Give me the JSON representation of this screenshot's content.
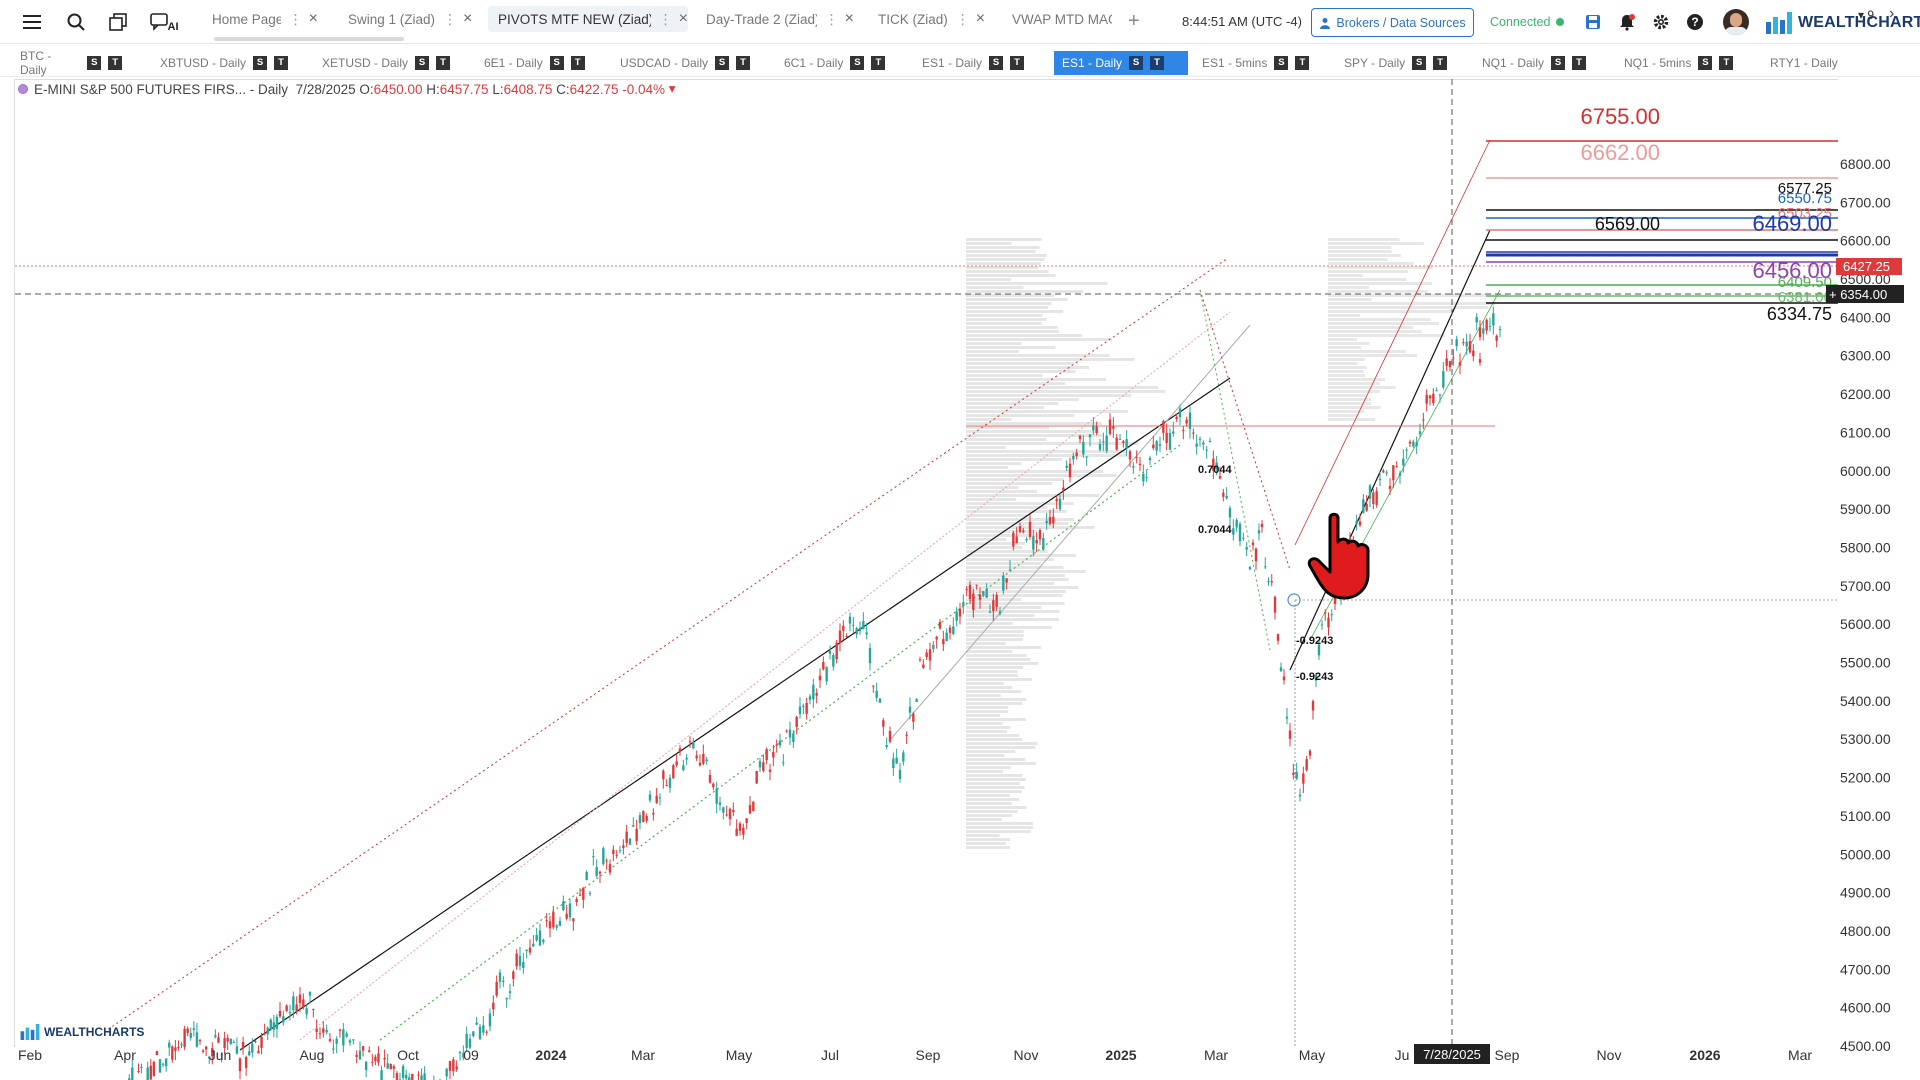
{
  "topbar": {
    "tabs": [
      {
        "label": "Home Page",
        "active": false
      },
      {
        "label": "Swing 1 (Ziad)",
        "active": false
      },
      {
        "label": "PIVOTS MTF NEW (Ziad)",
        "active": true
      },
      {
        "label": "Day-Trade 2 (Ziad)",
        "active": false
      },
      {
        "label": "TICK (Ziad)",
        "active": false
      },
      {
        "label": "VWAP MTD MAG",
        "active": false
      }
    ],
    "ai_label": "AI",
    "add_tab": "+",
    "clock": "8:44:51 AM  (UTC -4)",
    "brokers_label": "Brokers / Data Sources",
    "connection_status": "Connected",
    "logo_text": "WEALTHCHARTS",
    "icons": [
      "menu-icon",
      "search-icon",
      "layers-icon",
      "ai-chat-icon",
      "save-icon",
      "bell-icon",
      "gear-icon",
      "help-icon"
    ]
  },
  "watchlist": {
    "items": [
      {
        "label": "BTC - Daily",
        "active": false
      },
      {
        "label": "XBTUSD - Daily",
        "active": false
      },
      {
        "label": "XETUSD - Daily",
        "active": false
      },
      {
        "label": "6E1 - Daily",
        "active": false
      },
      {
        "label": "USDCAD - Daily",
        "active": false
      },
      {
        "label": "6C1 - Daily",
        "active": false
      },
      {
        "label": "ES1 - Daily",
        "active": false
      },
      {
        "label": "ES1 - Daily",
        "active": true
      },
      {
        "label": "ES1 - 5mins",
        "active": false
      },
      {
        "label": "SPY - Daily",
        "active": false
      },
      {
        "label": "NQ1 - Daily",
        "active": false
      },
      {
        "label": "NQ1 - 5mins",
        "active": false
      },
      {
        "label": "RTY1 - Daily",
        "active": false
      }
    ],
    "badge_s": "S",
    "badge_t": "T",
    "more_count": "9"
  },
  "legend": {
    "symbol": "E-MINI S&P 500 FUTURES FIRS... - Daily",
    "date": "7/28/2025",
    "o_label": "O:",
    "o": "6450.00",
    "h_label": "H:",
    "h": "6457.75",
    "l_label": "L:",
    "l": "6408.75",
    "c_label": "C:",
    "c": "6422.75",
    "change": "-0.04%"
  },
  "chart_data": {
    "type": "candlestick",
    "title": "E-MINI S&P 500 FUTURES FIRS... - Daily",
    "y_ticks": [
      4500,
      4600,
      4700,
      4800,
      4900,
      5000,
      5100,
      5200,
      5300,
      5400,
      5500,
      5600,
      5700,
      5800,
      5900,
      6000,
      6100,
      6200,
      6300,
      6400,
      6500,
      6600,
      6700,
      6800
    ],
    "x_ticks": [
      {
        "label": "Feb",
        "bold": false
      },
      {
        "label": "Apr",
        "bold": false
      },
      {
        "label": "Jun",
        "bold": false
      },
      {
        "label": "Aug",
        "bold": false
      },
      {
        "label": "Oct",
        "bold": false
      },
      {
        "label": "09",
        "bold": false
      },
      {
        "label": "2024",
        "bold": true
      },
      {
        "label": "Mar",
        "bold": false
      },
      {
        "label": "May",
        "bold": false
      },
      {
        "label": "Jul",
        "bold": false
      },
      {
        "label": "Sep",
        "bold": false
      },
      {
        "label": "Nov",
        "bold": false
      },
      {
        "label": "2025",
        "bold": true
      },
      {
        "label": "Mar",
        "bold": false
      },
      {
        "label": "May",
        "bold": false
      },
      {
        "label": "Ju",
        "bold": false
      },
      {
        "label": "Sep",
        "bold": false
      },
      {
        "label": "Nov",
        "bold": false
      },
      {
        "label": "2026",
        "bold": true
      },
      {
        "label": "Mar",
        "bold": false
      }
    ],
    "crosshair_date": "7/28/2025",
    "last_price": "6427.25",
    "crosshair_price": "6354.00",
    "price_series": [
      {
        "x": 120,
        "y": 4380
      },
      {
        "x": 160,
        "y": 4460
      },
      {
        "x": 200,
        "y": 4520
      },
      {
        "x": 240,
        "y": 4470
      },
      {
        "x": 280,
        "y": 4560
      },
      {
        "x": 300,
        "y": 4620
      },
      {
        "x": 330,
        "y": 4540
      },
      {
        "x": 360,
        "y": 4480
      },
      {
        "x": 400,
        "y": 4420
      },
      {
        "x": 440,
        "y": 4370
      },
      {
        "x": 470,
        "y": 4500
      },
      {
        "x": 500,
        "y": 4640
      },
      {
        "x": 520,
        "y": 4720
      },
      {
        "x": 550,
        "y": 4800
      },
      {
        "x": 580,
        "y": 4900
      },
      {
        "x": 610,
        "y": 5000
      },
      {
        "x": 640,
        "y": 5080
      },
      {
        "x": 670,
        "y": 5200
      },
      {
        "x": 690,
        "y": 5280
      },
      {
        "x": 700,
        "y": 5250
      },
      {
        "x": 720,
        "y": 5150
      },
      {
        "x": 740,
        "y": 5060
      },
      {
        "x": 760,
        "y": 5200
      },
      {
        "x": 790,
        "y": 5310
      },
      {
        "x": 810,
        "y": 5430
      },
      {
        "x": 840,
        "y": 5550
      },
      {
        "x": 860,
        "y": 5620
      },
      {
        "x": 880,
        "y": 5380
      },
      {
        "x": 900,
        "y": 5200
      },
      {
        "x": 920,
        "y": 5480
      },
      {
        "x": 940,
        "y": 5580
      },
      {
        "x": 960,
        "y": 5640
      },
      {
        "x": 980,
        "y": 5700
      },
      {
        "x": 1000,
        "y": 5660
      },
      {
        "x": 1020,
        "y": 5860
      },
      {
        "x": 1040,
        "y": 5820
      },
      {
        "x": 1060,
        "y": 5940
      },
      {
        "x": 1080,
        "y": 6050
      },
      {
        "x": 1100,
        "y": 6100
      },
      {
        "x": 1120,
        "y": 6090
      },
      {
        "x": 1140,
        "y": 6000
      },
      {
        "x": 1160,
        "y": 6080
      },
      {
        "x": 1190,
        "y": 6130
      },
      {
        "x": 1210,
        "y": 6060
      },
      {
        "x": 1230,
        "y": 5900
      },
      {
        "x": 1250,
        "y": 5750
      },
      {
        "x": 1262,
        "y": 5860
      },
      {
        "x": 1275,
        "y": 5620
      },
      {
        "x": 1290,
        "y": 5300
      },
      {
        "x": 1300,
        "y": 5150
      },
      {
        "x": 1310,
        "y": 5300
      },
      {
        "x": 1322,
        "y": 5580
      },
      {
        "x": 1335,
        "y": 5660
      },
      {
        "x": 1350,
        "y": 5800
      },
      {
        "x": 1370,
        "y": 5930
      },
      {
        "x": 1390,
        "y": 5990
      },
      {
        "x": 1410,
        "y": 6050
      },
      {
        "x": 1430,
        "y": 6190
      },
      {
        "x": 1450,
        "y": 6290
      },
      {
        "x": 1470,
        "y": 6330
      },
      {
        "x": 1490,
        "y": 6420
      },
      {
        "x": 1500,
        "y": 6370
      },
      {
        "x": 1480,
        "y": 6300
      },
      {
        "x": 1470,
        "y": 6330
      }
    ],
    "price_levels": [
      {
        "label": "6755.00",
        "value": 6755.0,
        "color": "#d32f2f"
      },
      {
        "label": "6662.00",
        "value": 6662.0,
        "color": "#ef9a9a"
      },
      {
        "label": "6577.25",
        "value": 6577.25,
        "color": "#111111"
      },
      {
        "label": "6550.75",
        "value": 6550.75,
        "color": "#1565c0"
      },
      {
        "label": "6503.25",
        "value": 6503.25,
        "color": "#e57373"
      },
      {
        "label": "6569.00",
        "value": 6569.0,
        "color": "#111111"
      },
      {
        "label": "6469.00",
        "value": 6469.0,
        "color": "#1e3aa8"
      },
      {
        "label": "6456.00",
        "value": 6456.0,
        "color": "#8e44ad"
      },
      {
        "label": "6409.50",
        "value": 6409.5,
        "color": "#4caf50"
      },
      {
        "label": "6381.00",
        "value": 6381.0,
        "color": "#66bb6a"
      },
      {
        "label": "6334.75",
        "value": 6334.75,
        "color": "#111111"
      }
    ],
    "fib_labels": [
      "0.7044",
      "0.7044",
      "-0.9243",
      "-0.9243"
    ]
  },
  "chart_brand": "WEALTHCHARTS"
}
